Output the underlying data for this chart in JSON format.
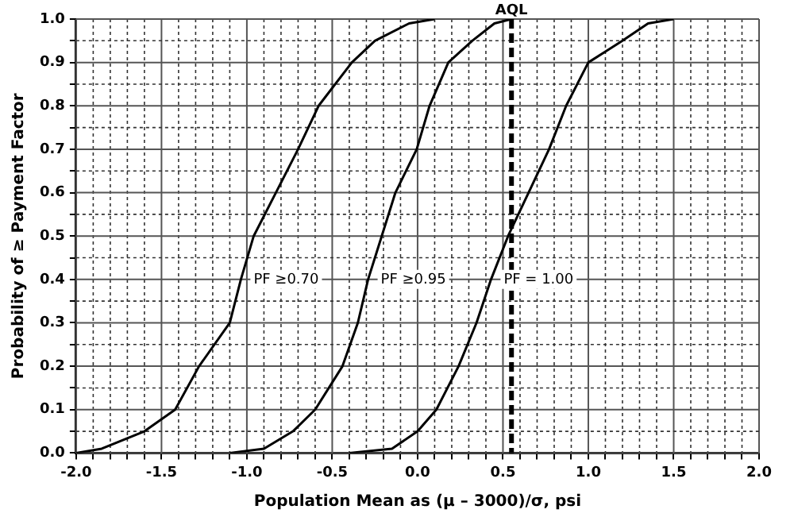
{
  "chart_data": {
    "type": "line",
    "xlabel": "Population Mean as (μ – 3000)/σ, psi",
    "ylabel": "Probability of ≥ Payment Factor",
    "xlim": [
      -2,
      2
    ],
    "ylim": [
      0,
      1
    ],
    "xticks": [
      {
        "value": -2,
        "label": "-2.0"
      },
      {
        "value": -1.9,
        "label": null
      },
      {
        "value": -1.8,
        "label": null
      },
      {
        "value": -1.7,
        "label": null
      },
      {
        "value": -1.6,
        "label": null
      },
      -1.5,
      {
        "value": -1.4,
        "label": null
      },
      {
        "value": -1.3,
        "label": null
      },
      {
        "value": -1.2,
        "label": null
      },
      {
        "value": -1.1,
        "label": null
      },
      {
        "value": -1,
        "label": "-1.0"
      },
      {
        "value": -0.9,
        "label": null
      },
      {
        "value": -0.8,
        "label": null
      },
      {
        "value": -0.7,
        "label": null
      },
      {
        "value": -0.6,
        "label": null
      },
      -0.5,
      {
        "value": -0.4,
        "label": null
      },
      {
        "value": -0.3,
        "label": null
      },
      {
        "value": -0.2,
        "label": null
      },
      {
        "value": -0.1,
        "label": null
      },
      {
        "value": 0,
        "label": "0.0"
      },
      {
        "value": 0.1,
        "label": null
      },
      {
        "value": 0.2,
        "label": null
      },
      {
        "value": 0.3,
        "label": null
      },
      {
        "value": 0.4,
        "label": null
      },
      0.5,
      {
        "value": 0.6,
        "label": null
      },
      {
        "value": 0.7,
        "label": null
      },
      {
        "value": 0.8,
        "label": null
      },
      {
        "value": 0.9,
        "label": null
      },
      {
        "value": 1,
        "label": "1.0"
      },
      {
        "value": 1.1,
        "label": null
      },
      {
        "value": 1.2,
        "label": null
      },
      {
        "value": 1.3,
        "label": null
      },
      {
        "value": 1.4,
        "label": null
      },
      1.5,
      {
        "value": 1.6,
        "label": null
      },
      {
        "value": 1.7,
        "label": null
      },
      {
        "value": 1.8,
        "label": null
      },
      {
        "value": 1.9,
        "label": null
      },
      {
        "value": 2,
        "label": "2.0"
      }
    ],
    "yticks": [
      {
        "value": 0,
        "label": "0.0"
      },
      {
        "value": 0.05,
        "label": null
      },
      0.1,
      {
        "value": 0.15,
        "label": null
      },
      0.2,
      {
        "value": 0.25,
        "label": null
      },
      0.3,
      {
        "value": 0.35,
        "label": null
      },
      0.4,
      {
        "value": 0.45,
        "label": null
      },
      0.5,
      {
        "value": 0.55,
        "label": null
      },
      0.6,
      {
        "value": 0.65,
        "label": null
      },
      0.7,
      {
        "value": 0.75,
        "label": null
      },
      0.8,
      {
        "value": 0.85,
        "label": null
      },
      0.9,
      {
        "value": 0.95,
        "label": null
      },
      {
        "value": 1,
        "label": "1.0"
      }
    ],
    "grid": true,
    "marker": "none",
    "line_style": "solid",
    "series": [
      {
        "name": "PF ≥0.70",
        "color": "#000000",
        "x": [
          -2.0,
          -1.85,
          -1.6,
          -1.42,
          -1.28,
          -1.1,
          -1.035,
          -0.96,
          -0.83,
          -0.7,
          -0.58,
          -0.385,
          -0.25,
          -0.05,
          0.1
        ],
        "values": [
          0,
          0.01,
          0.05,
          0.1,
          0.2,
          0.3,
          0.4,
          0.5,
          0.6,
          0.7,
          0.8,
          0.9,
          0.95,
          0.99,
          1.0
        ]
      },
      {
        "name": "PF ≥0.95",
        "color": "#000000",
        "x": [
          -1.1,
          -0.9,
          -0.73,
          -0.6,
          -0.44,
          -0.35,
          -0.29,
          -0.21,
          -0.13,
          -0.005,
          0.07,
          0.18,
          0.32,
          0.45,
          0.55
        ],
        "values": [
          0,
          0.01,
          0.05,
          0.1,
          0.2,
          0.3,
          0.4,
          0.5,
          0.6,
          0.7,
          0.8,
          0.9,
          0.95,
          0.99,
          1.0
        ]
      },
      {
        "name": "PF = 1.00",
        "color": "#000000",
        "x": [
          -0.4,
          -0.15,
          0.0,
          0.11,
          0.24,
          0.345,
          0.43,
          0.53,
          0.65,
          0.77,
          0.87,
          1.0,
          1.2,
          1.35,
          1.5
        ],
        "values": [
          0,
          0.01,
          0.05,
          0.1,
          0.2,
          0.3,
          0.4,
          0.5,
          0.6,
          0.7,
          0.8,
          0.9,
          0.95,
          0.99,
          1.0
        ]
      }
    ],
    "ref_lines": [
      {
        "axis": "x",
        "value": 0.55,
        "label": "AQL",
        "color": "#000000",
        "line_style": "dashed"
      }
    ]
  }
}
